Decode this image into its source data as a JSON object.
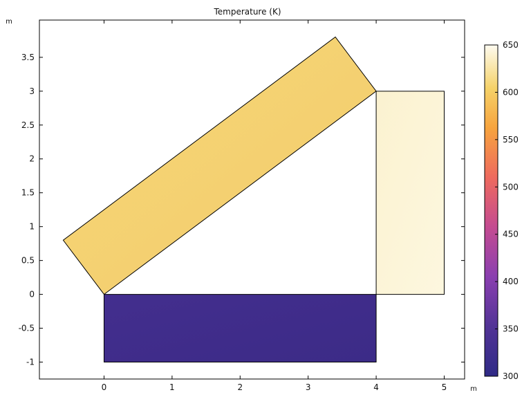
{
  "plot": {
    "title": "Temperature (K)",
    "y_unit": "m",
    "x_unit": "m"
  },
  "chart_data": {
    "type": "heatmap",
    "title": "Temperature (K)",
    "xlabel": "m",
    "ylabel": "m",
    "xlim": [
      -0.95,
      5.3
    ],
    "ylim": [
      -1.25,
      4.05
    ],
    "x_ticks": [
      "0",
      "1",
      "2",
      "3",
      "4",
      "5"
    ],
    "y_ticks": [
      "-1",
      "-0.5",
      "0",
      "0.5",
      "1",
      "1.5",
      "2",
      "2.5",
      "3",
      "3.5"
    ],
    "grid": false,
    "colorbar": {
      "min": 300,
      "max": 650,
      "ticks": [
        "300",
        "350",
        "400",
        "450",
        "500",
        "550",
        "600",
        "650"
      ],
      "stops": [
        {
          "t": 0.0,
          "color": "#2f2a86"
        },
        {
          "t": 0.15,
          "color": "#523496"
        },
        {
          "t": 0.3,
          "color": "#8a3fb0"
        },
        {
          "t": 0.45,
          "color": "#c44b91"
        },
        {
          "t": 0.6,
          "color": "#ee6a5e"
        },
        {
          "t": 0.75,
          "color": "#f7a43e"
        },
        {
          "t": 0.87,
          "color": "#f5d269"
        },
        {
          "t": 1.0,
          "color": "#fefbf0"
        }
      ]
    },
    "regions": [
      {
        "name": "inclined-bar",
        "polygon": [
          [
            0,
            0
          ],
          [
            4,
            3
          ],
          [
            3.4,
            3.8
          ],
          [
            -0.6,
            0.8
          ]
        ],
        "temperature": 600,
        "fill": "#f3ca6c",
        "fill_light": "#f6d877"
      },
      {
        "name": "vertical-bar",
        "polygon": [
          [
            4,
            0
          ],
          [
            5,
            0
          ],
          [
            5,
            3
          ],
          [
            4,
            3
          ]
        ],
        "temperature": 645,
        "fill": "#fdf7df",
        "fill_light": "#fbf2d0"
      },
      {
        "name": "bottom-bar",
        "polygon": [
          [
            0,
            -1
          ],
          [
            4,
            -1
          ],
          [
            4,
            0
          ],
          [
            0,
            0
          ]
        ],
        "temperature": 310,
        "fill": "#3c2b87",
        "fill_light": "#432e8e"
      }
    ]
  }
}
